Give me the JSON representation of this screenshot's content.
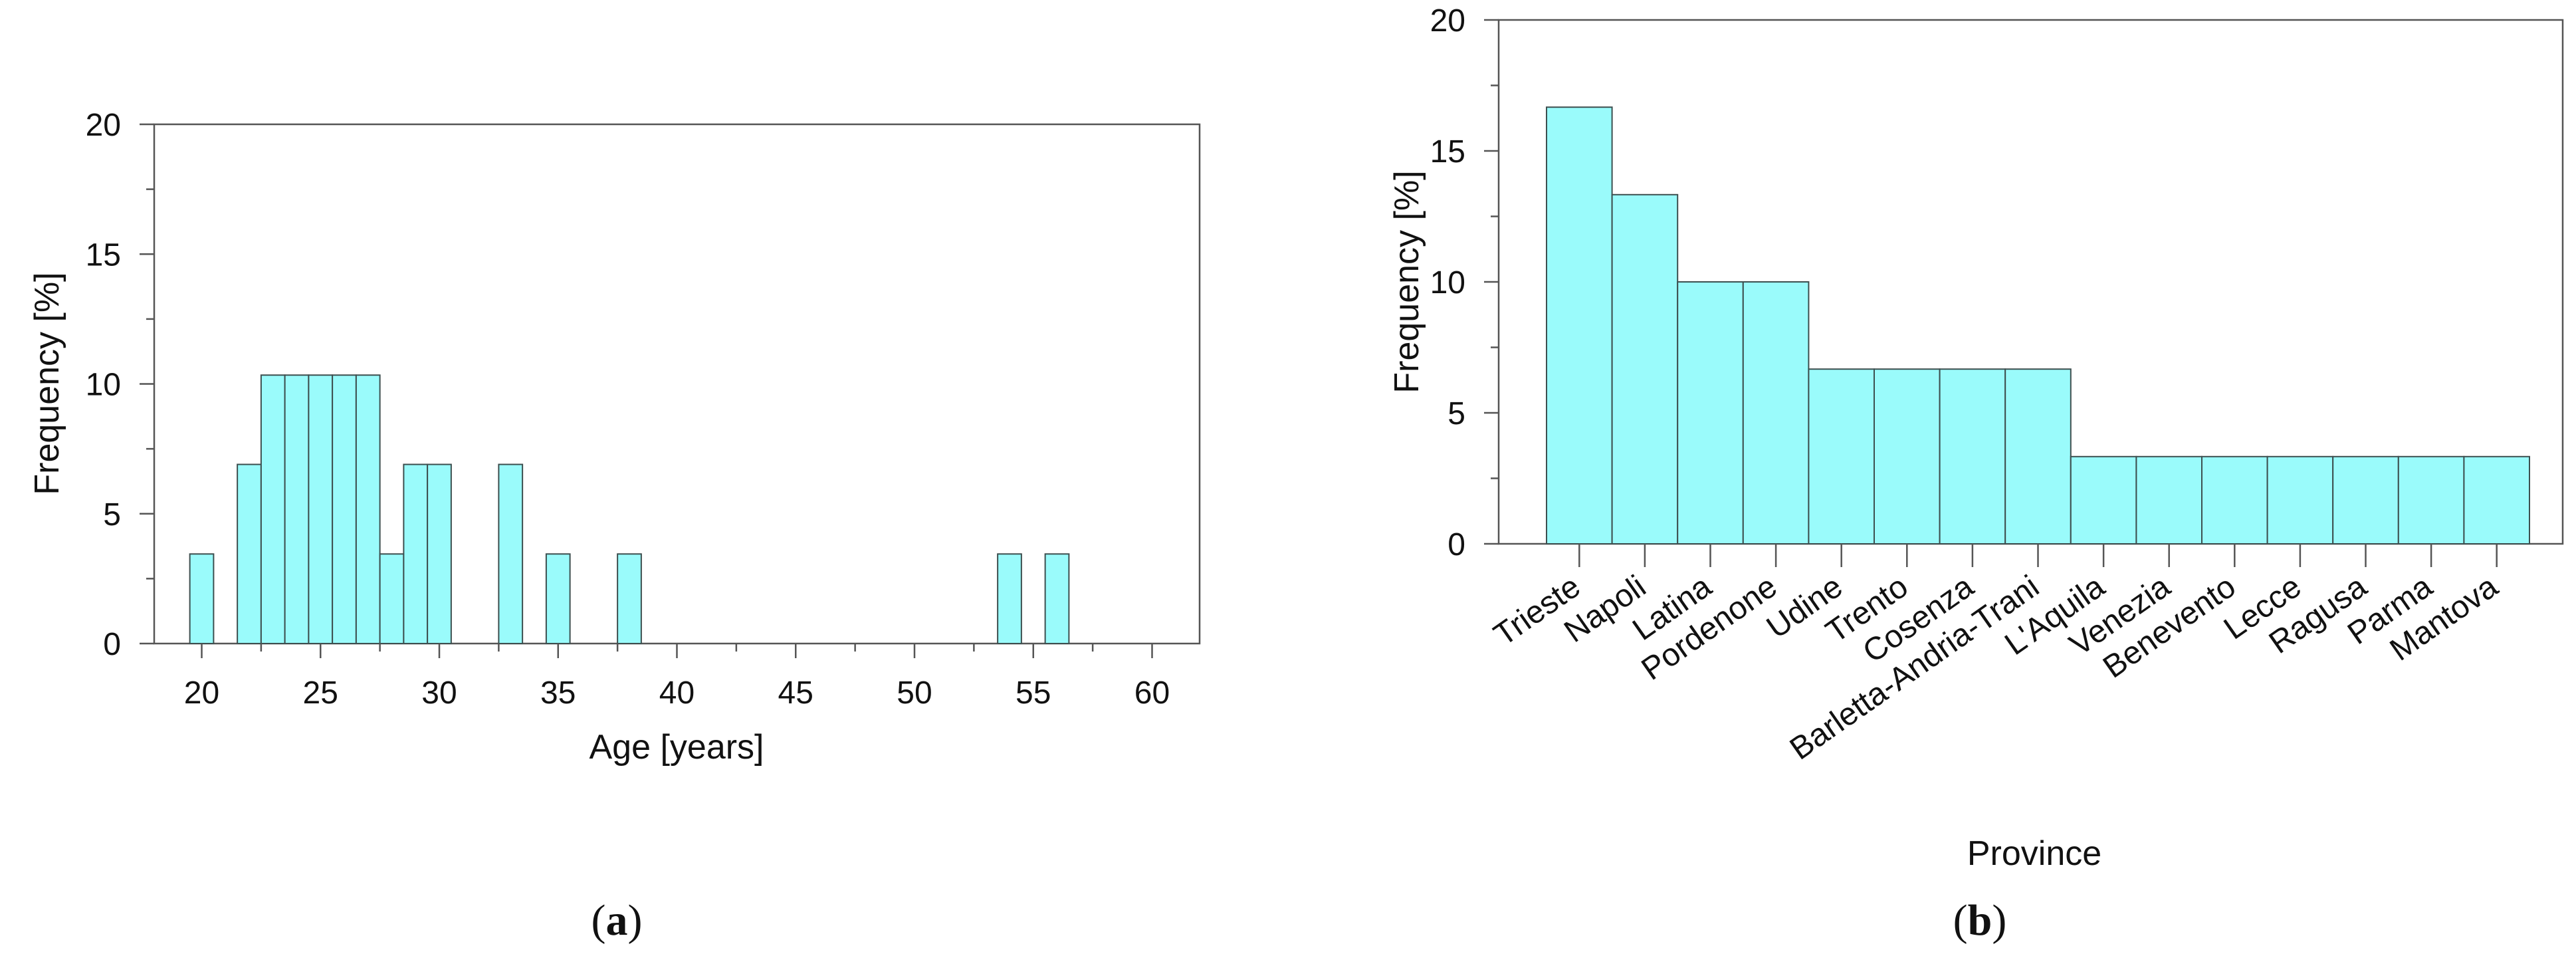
{
  "colors": {
    "bar_fill": "#9afbfb",
    "bar_stroke": "#3d4f4f",
    "axis": "#555555",
    "text": "#111111"
  },
  "captions": {
    "a_letter": "a",
    "b_letter": "b",
    "open": "(",
    "close": ")"
  },
  "chart_data": [
    {
      "id": "a",
      "type": "bar",
      "subtype": "histogram",
      "title": "",
      "xlabel": "Age [years]",
      "ylabel": "Frequency  [%]",
      "xlim": [
        18,
        62
      ],
      "ylim": [
        0,
        20
      ],
      "x_ticks": [
        20,
        25,
        30,
        35,
        40,
        45,
        50,
        55,
        60
      ],
      "x_minor_ticks": [
        22.5,
        27.5,
        32.5,
        37.5,
        42.5,
        47.5,
        52.5,
        57.5
      ],
      "y_ticks": [
        0,
        5,
        10,
        15,
        20
      ],
      "y_minor_ticks": [
        2.5,
        7.5,
        12.5,
        17.5
      ],
      "bin_width": 1,
      "bins": [
        {
          "start": 19.5,
          "value": 3.45
        },
        {
          "start": 21.5,
          "value": 6.9
        },
        {
          "start": 22.5,
          "value": 10.34
        },
        {
          "start": 23.5,
          "value": 10.34
        },
        {
          "start": 24.5,
          "value": 10.34
        },
        {
          "start": 25.5,
          "value": 10.34
        },
        {
          "start": 26.5,
          "value": 10.34
        },
        {
          "start": 27.5,
          "value": 3.45
        },
        {
          "start": 28.5,
          "value": 6.9
        },
        {
          "start": 29.5,
          "value": 6.9
        },
        {
          "start": 32.5,
          "value": 6.9
        },
        {
          "start": 34.5,
          "value": 3.45
        },
        {
          "start": 37.5,
          "value": 3.45
        },
        {
          "start": 53.5,
          "value": 3.45
        },
        {
          "start": 55.5,
          "value": 3.45
        }
      ],
      "grid": false,
      "legend": "none"
    },
    {
      "id": "b",
      "type": "bar",
      "title": "",
      "xlabel": "Province",
      "ylabel": "Frequency  [%]",
      "ylim": [
        0,
        20
      ],
      "y_ticks": [
        0,
        5,
        10,
        15,
        20
      ],
      "y_minor_ticks": [
        2.5,
        7.5,
        12.5,
        17.5
      ],
      "categories": [
        "Trieste",
        "Napoli",
        "Latina",
        "Pordenone",
        "Udine",
        "Trento",
        "Cosenza",
        "Barletta-Andria-Trani",
        "L'Aquila",
        "Venezia",
        "Benevento",
        "Lecce",
        "Ragusa",
        "Parma",
        "Mantova"
      ],
      "values": [
        16.67,
        13.33,
        10,
        10,
        6.67,
        6.67,
        6.67,
        6.67,
        3.33,
        3.33,
        3.33,
        3.33,
        3.33,
        3.33,
        3.33
      ],
      "grid": false,
      "legend": "none"
    }
  ]
}
